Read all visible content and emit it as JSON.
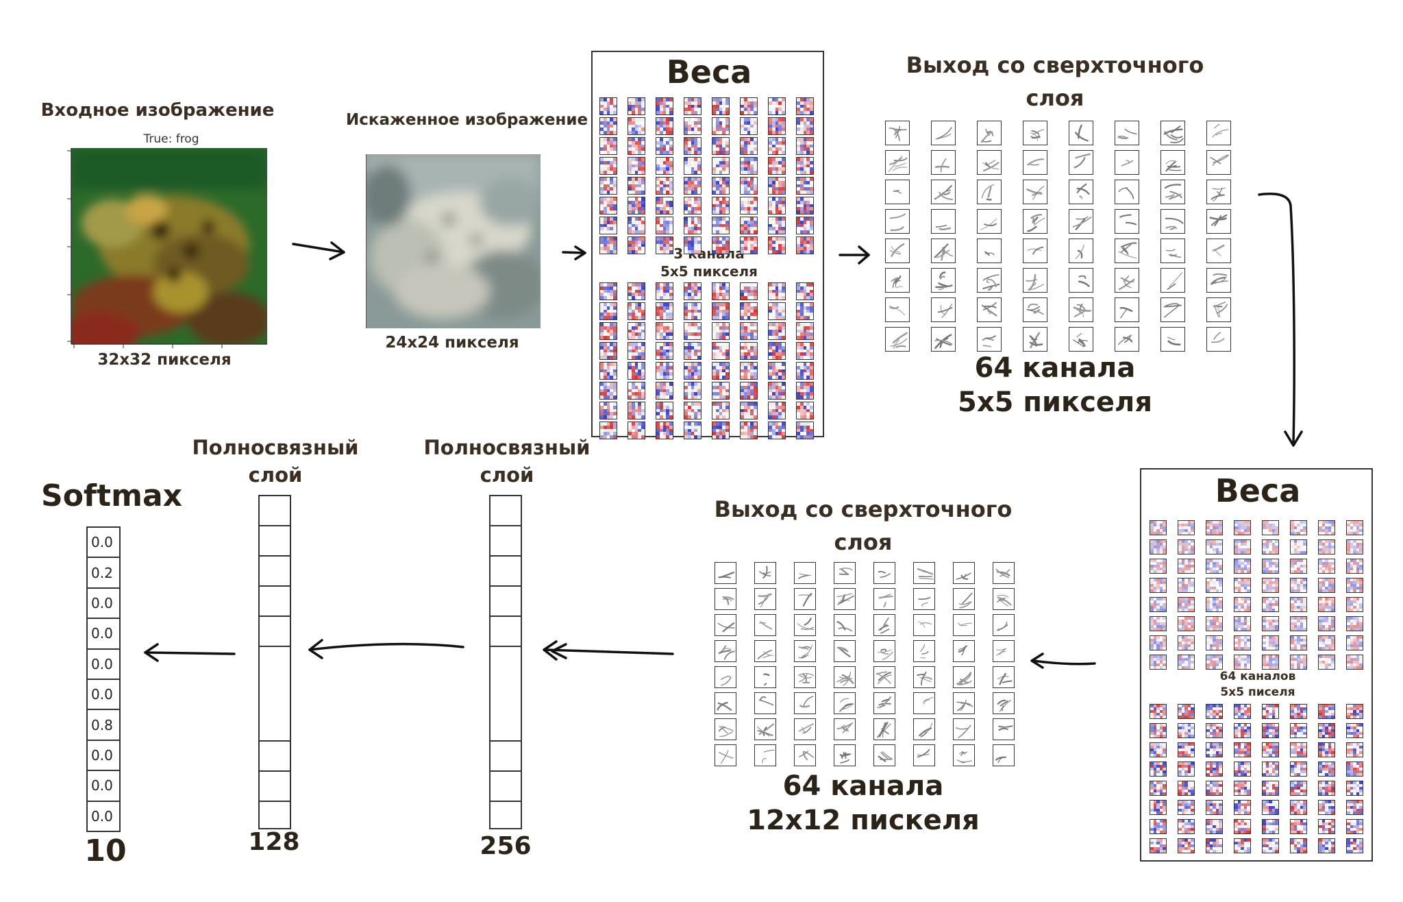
{
  "input_block": {
    "title": "Входное изображение",
    "caption": "True: frog",
    "size_label": "32x32 пикселя"
  },
  "distorted_block": {
    "title": "Искаженное изображение",
    "size_label": "24x24 пикселя"
  },
  "weights1": {
    "title": "Веса",
    "label_line1": "3 канала",
    "label_line2": "5x5 пикселя"
  },
  "conv_out1": {
    "title_line1": "Выход со сверхточного",
    "title_line2": "слоя",
    "label_line1": "64 канала",
    "label_line2": "5x5 пикселя"
  },
  "weights2": {
    "title": "Веса",
    "label_line1": "64 каналов",
    "label_line2": "5x5 писеля"
  },
  "conv_out2": {
    "title_line1": "Выход со сверхточного",
    "title_line2": "слоя",
    "label_line1": "64 канала",
    "label_line2": "12x12 пискеля"
  },
  "fc256": {
    "title_line1": "Полносвязный",
    "title_line2": "слой",
    "size": "256"
  },
  "fc128": {
    "title_line1": "Полносвязный",
    "title_line2": "слой",
    "size": "128"
  },
  "softmax": {
    "title": "Softmax",
    "size": "10",
    "values": [
      "0.0",
      "0.2",
      "0.0",
      "0.0",
      "0.0",
      "0.0",
      "0.8",
      "0.0",
      "0.0",
      "0.0"
    ]
  },
  "colors": {
    "frame": "#333333",
    "text": "#3a2e22",
    "weight_red": "#d63a3a",
    "weight_blue": "#3a45c8",
    "frog_green": "#2f6b2a"
  }
}
